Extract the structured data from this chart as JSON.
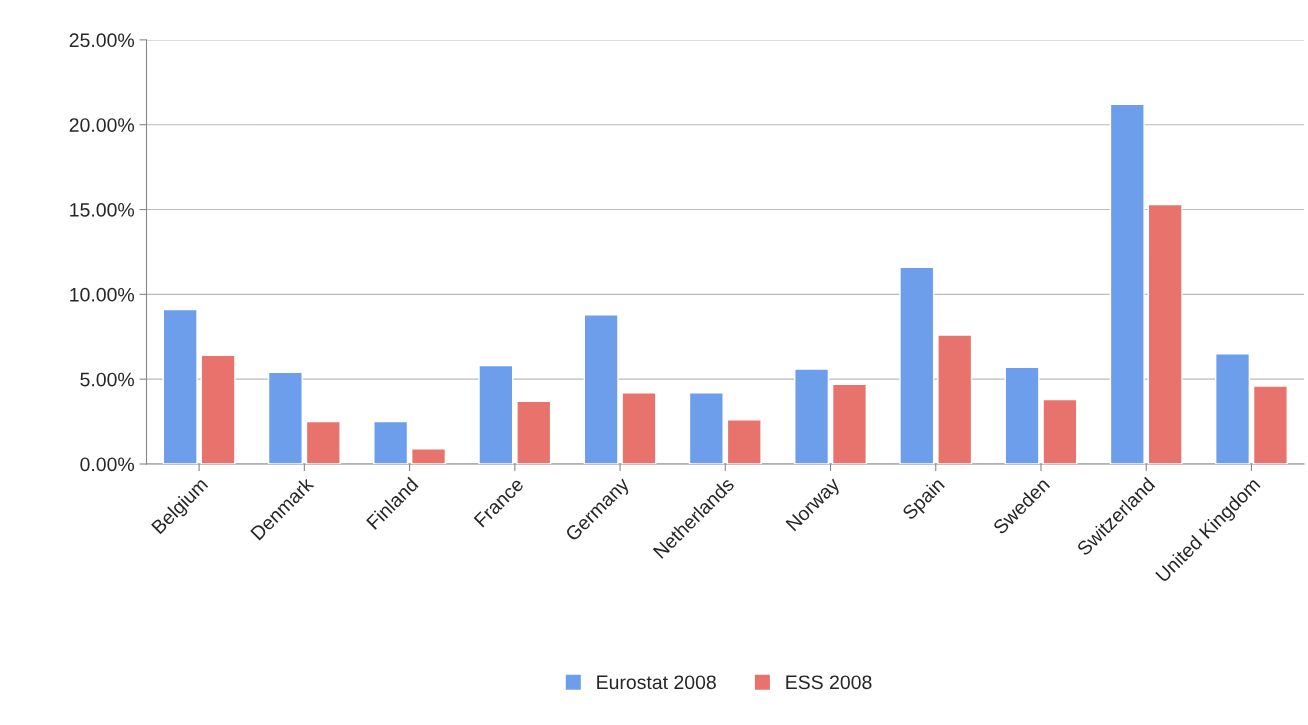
{
  "chart_data": {
    "type": "bar",
    "categories": [
      "Belgium",
      "Denmark",
      "Finland",
      "France",
      "Germany",
      "Netherlands",
      "Norway",
      "Spain",
      "Sweden",
      "Switzerland",
      "United Kingdom"
    ],
    "series": [
      {
        "name": "Eurostat 2008",
        "color": "#6d9eeb",
        "values": [
          9.1,
          5.4,
          2.5,
          5.8,
          8.8,
          4.2,
          5.6,
          11.6,
          5.7,
          21.2,
          6.5
        ]
      },
      {
        "name": "ESS 2008",
        "color": "#e8736d",
        "values": [
          6.4,
          2.5,
          0.9,
          3.7,
          4.2,
          2.6,
          4.7,
          7.6,
          3.8,
          15.3,
          4.6
        ]
      }
    ],
    "ylim": [
      0,
      25
    ],
    "yticks": [
      {
        "value": 0,
        "label": "0.00%"
      },
      {
        "value": 5,
        "label": "5.00%"
      },
      {
        "value": 10,
        "label": "10.00%"
      },
      {
        "value": 15,
        "label": "15.00%"
      },
      {
        "value": 20,
        "label": "20.00%"
      },
      {
        "value": 25,
        "label": "25.00%"
      }
    ],
    "grid": "y",
    "legend": "bottom"
  }
}
